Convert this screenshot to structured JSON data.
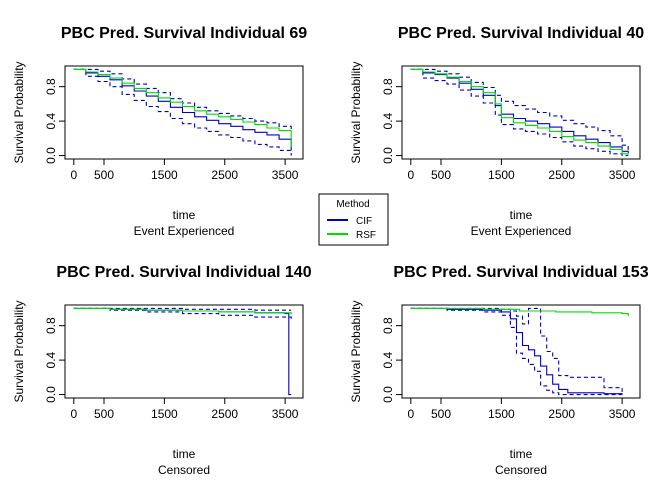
{
  "chart_data": [
    {
      "type": "line",
      "title": "PBC Pred. Survival Individual 69",
      "xlabel": "time",
      "subtitle": "Event Experienced",
      "ylabel": "Survival Probability",
      "xlim": [
        0,
        3650
      ],
      "ylim": [
        0,
        1
      ],
      "xticks": [
        0,
        500,
        1500,
        2500,
        3500
      ],
      "yticks": [
        0.0,
        0.4,
        0.8
      ],
      "series": [
        {
          "name": "CIF",
          "style": "solid",
          "color": "#0000cc",
          "x": [
            0,
            200,
            400,
            600,
            800,
            1000,
            1200,
            1400,
            1600,
            1800,
            2000,
            2200,
            2400,
            2600,
            2800,
            3000,
            3200,
            3400,
            3600
          ],
          "y": [
            1.0,
            0.96,
            0.92,
            0.88,
            0.81,
            0.75,
            0.69,
            0.63,
            0.56,
            0.5,
            0.45,
            0.41,
            0.37,
            0.34,
            0.3,
            0.27,
            0.24,
            0.19,
            0.06
          ]
        },
        {
          "name": "CIF upper",
          "style": "dashed",
          "color": "#0000cc",
          "x": [
            0,
            200,
            400,
            600,
            800,
            1000,
            1200,
            1400,
            1600,
            1800,
            2000,
            2200,
            2400,
            2600,
            2800,
            3000,
            3200,
            3400,
            3600
          ],
          "y": [
            1.0,
            1.0,
            0.98,
            0.95,
            0.89,
            0.83,
            0.78,
            0.73,
            0.66,
            0.61,
            0.56,
            0.52,
            0.49,
            0.46,
            0.43,
            0.4,
            0.38,
            0.34,
            0.28
          ]
        },
        {
          "name": "CIF lower",
          "style": "dashed",
          "color": "#0000cc",
          "x": [
            0,
            200,
            400,
            600,
            800,
            1000,
            1200,
            1400,
            1600,
            1800,
            2000,
            2200,
            2400,
            2600,
            2800,
            3000,
            3200,
            3400,
            3600
          ],
          "y": [
            1.0,
            0.92,
            0.86,
            0.8,
            0.71,
            0.64,
            0.57,
            0.51,
            0.43,
            0.37,
            0.32,
            0.28,
            0.24,
            0.21,
            0.17,
            0.13,
            0.1,
            0.06,
            0.0
          ]
        },
        {
          "name": "RSF",
          "style": "solid",
          "color": "#00dd00",
          "x": [
            0,
            200,
            400,
            600,
            800,
            1000,
            1200,
            1400,
            1600,
            1800,
            2000,
            2200,
            2400,
            2600,
            2800,
            3000,
            3200,
            3400,
            3600
          ],
          "y": [
            1.0,
            0.97,
            0.94,
            0.9,
            0.84,
            0.78,
            0.73,
            0.67,
            0.62,
            0.57,
            0.52,
            0.48,
            0.45,
            0.42,
            0.39,
            0.36,
            0.32,
            0.29,
            0.1
          ]
        }
      ]
    },
    {
      "type": "line",
      "title": "PBC Pred. Survival Individual 40",
      "xlabel": "time",
      "subtitle": "Event Experienced",
      "ylabel": "Survival Probability",
      "xlim": [
        0,
        3650
      ],
      "ylim": [
        0,
        1
      ],
      "xticks": [
        0,
        500,
        1500,
        2500,
        3500
      ],
      "yticks": [
        0.0,
        0.4,
        0.8
      ],
      "series": [
        {
          "name": "CIF",
          "style": "solid",
          "color": "#0000cc",
          "x": [
            0,
            200,
            400,
            600,
            800,
            1000,
            1200,
            1400,
            1500,
            1700,
            1900,
            2100,
            2300,
            2500,
            2700,
            2900,
            3100,
            3300,
            3500,
            3600
          ],
          "y": [
            1.0,
            0.96,
            0.94,
            0.9,
            0.84,
            0.77,
            0.7,
            0.58,
            0.48,
            0.43,
            0.4,
            0.37,
            0.33,
            0.28,
            0.23,
            0.19,
            0.15,
            0.1,
            0.05,
            0.03
          ]
        },
        {
          "name": "CIF upper",
          "style": "dashed",
          "color": "#0000cc",
          "x": [
            0,
            200,
            400,
            600,
            800,
            1000,
            1200,
            1400,
            1500,
            1700,
            1900,
            2100,
            2300,
            2500,
            2700,
            2900,
            3100,
            3300,
            3500,
            3600
          ],
          "y": [
            1.0,
            1.0,
            0.98,
            0.95,
            0.91,
            0.85,
            0.79,
            0.7,
            0.63,
            0.58,
            0.54,
            0.5,
            0.46,
            0.41,
            0.37,
            0.33,
            0.29,
            0.23,
            0.12,
            0.06
          ]
        },
        {
          "name": "CIF lower",
          "style": "dashed",
          "color": "#0000cc",
          "x": [
            0,
            200,
            400,
            600,
            800,
            1000,
            1200,
            1400,
            1500,
            1700,
            1900,
            2100,
            2300,
            2500,
            2700,
            2900,
            3100,
            3300,
            3500,
            3600
          ],
          "y": [
            1.0,
            0.9,
            0.87,
            0.83,
            0.76,
            0.69,
            0.61,
            0.47,
            0.36,
            0.31,
            0.28,
            0.25,
            0.21,
            0.16,
            0.11,
            0.08,
            0.05,
            0.02,
            0.0,
            0.0
          ]
        },
        {
          "name": "RSF",
          "style": "solid",
          "color": "#00dd00",
          "x": [
            0,
            200,
            400,
            600,
            800,
            1000,
            1200,
            1400,
            1500,
            1700,
            1900,
            2100,
            2300,
            2500,
            2700,
            2900,
            3100,
            3300,
            3500,
            3600
          ],
          "y": [
            1.0,
            0.97,
            0.95,
            0.91,
            0.86,
            0.8,
            0.73,
            0.6,
            0.44,
            0.38,
            0.35,
            0.32,
            0.28,
            0.22,
            0.18,
            0.15,
            0.11,
            0.07,
            0.02,
            0.01
          ]
        }
      ]
    },
    {
      "type": "line",
      "title": "PBC Pred. Survival Individual 140",
      "xlabel": "time",
      "subtitle": "Censored",
      "ylabel": "Survival Probability",
      "xlim": [
        0,
        3650
      ],
      "ylim": [
        0,
        1
      ],
      "xticks": [
        0,
        500,
        1500,
        2500,
        3500
      ],
      "yticks": [
        0.0,
        0.4,
        0.8
      ],
      "series": [
        {
          "name": "CIF",
          "style": "solid",
          "color": "#0000cc",
          "x": [
            0,
            600,
            1200,
            1800,
            2400,
            3000,
            3500,
            3560,
            3560,
            3600
          ],
          "y": [
            1.0,
            0.99,
            0.98,
            0.97,
            0.96,
            0.95,
            0.94,
            0.94,
            0.0,
            0.0
          ]
        },
        {
          "name": "CIF upper",
          "style": "dashed",
          "color": "#0000cc",
          "x": [
            0,
            600,
            1200,
            1800,
            2400,
            3000,
            3600
          ],
          "y": [
            1.0,
            1.0,
            1.0,
            0.99,
            0.99,
            0.98,
            0.98
          ]
        },
        {
          "name": "CIF lower",
          "style": "dashed",
          "color": "#0000cc",
          "x": [
            0,
            600,
            1200,
            1800,
            2400,
            3000,
            3600
          ],
          "y": [
            1.0,
            0.98,
            0.96,
            0.94,
            0.92,
            0.9,
            0.88
          ]
        },
        {
          "name": "RSF",
          "style": "solid",
          "color": "#00dd00",
          "x": [
            0,
            600,
            1200,
            1800,
            2400,
            3000,
            3600
          ],
          "y": [
            1.0,
            0.99,
            0.98,
            0.97,
            0.96,
            0.95,
            0.93
          ]
        }
      ]
    },
    {
      "type": "line",
      "title": "PBC Pred. Survival Individual 153",
      "xlabel": "time",
      "subtitle": "Censored",
      "ylabel": "Survival Probability",
      "xlim": [
        0,
        3650
      ],
      "ylim": [
        0,
        1
      ],
      "xticks": [
        0,
        500,
        1500,
        2500,
        3500
      ],
      "yticks": [
        0.0,
        0.4,
        0.8
      ],
      "series": [
        {
          "name": "CIF",
          "style": "solid",
          "color": "#0000cc",
          "x": [
            0,
            600,
            1200,
            1500,
            1650,
            1750,
            1850,
            1950,
            2050,
            2150,
            2250,
            2350,
            2450,
            2600,
            3200,
            3500
          ],
          "y": [
            1.0,
            0.99,
            0.98,
            0.96,
            0.88,
            0.72,
            0.57,
            0.52,
            0.45,
            0.33,
            0.23,
            0.12,
            0.06,
            0.02,
            0.01,
            0.0
          ]
        },
        {
          "name": "CIF upper",
          "style": "dashed",
          "color": "#0000cc",
          "x": [
            0,
            600,
            1200,
            1500,
            1650,
            1750,
            1850,
            1950,
            2050,
            2150,
            2250,
            2350,
            2450,
            2600,
            3000,
            3200,
            3500
          ],
          "y": [
            1.0,
            1.0,
            1.0,
            0.99,
            0.97,
            0.91,
            0.82,
            1.0,
            1.0,
            0.68,
            0.5,
            0.42,
            0.22,
            0.2,
            0.2,
            0.08,
            0.03
          ]
        },
        {
          "name": "CIF lower",
          "style": "dashed",
          "color": "#0000cc",
          "x": [
            0,
            600,
            1200,
            1500,
            1650,
            1750,
            1850,
            1950,
            2050,
            2150,
            2250,
            2350,
            2450,
            2600,
            3200,
            3500
          ],
          "y": [
            1.0,
            0.98,
            0.96,
            0.92,
            0.78,
            0.48,
            0.42,
            0.35,
            0.27,
            0.1,
            0.05,
            0.02,
            0.0,
            0.0,
            0.0,
            0.0
          ]
        },
        {
          "name": "RSF",
          "style": "solid",
          "color": "#00dd00",
          "x": [
            0,
            600,
            1200,
            1800,
            2400,
            3000,
            3500,
            3600
          ],
          "y": [
            1.0,
            1.0,
            0.99,
            0.97,
            0.96,
            0.95,
            0.94,
            0.91
          ]
        }
      ]
    }
  ],
  "legend": {
    "title": "Method",
    "items": [
      {
        "label": "CIF",
        "color": "#0000cc"
      },
      {
        "label": "RSF",
        "color": "#00dd00"
      }
    ]
  }
}
